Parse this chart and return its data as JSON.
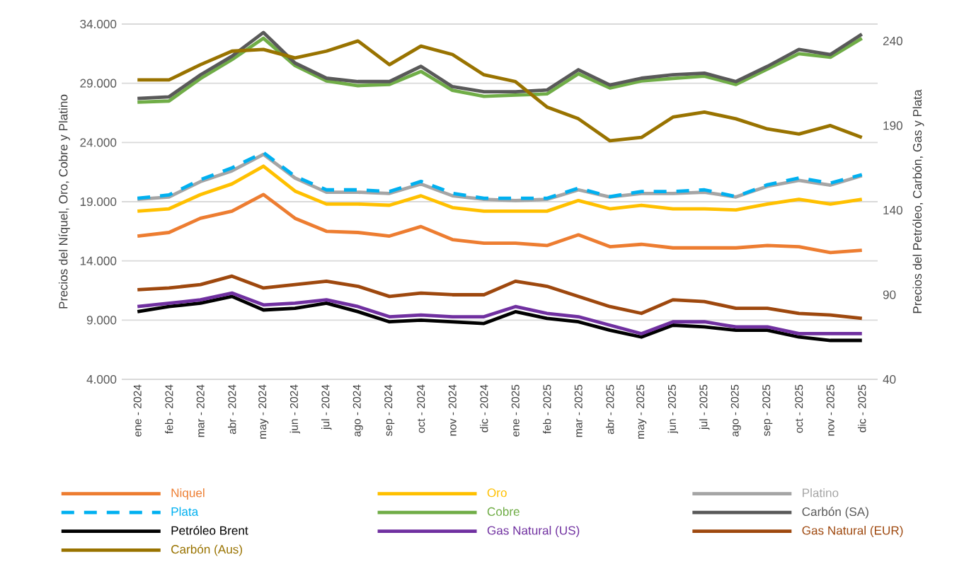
{
  "chart_data": {
    "type": "line",
    "categories": [
      "ene - 2024",
      "feb - 2024",
      "mar - 2024",
      "abr - 2024",
      "may - 2024",
      "jun - 2024",
      "jul - 2024",
      "ago - 2024",
      "sep - 2024",
      "oct - 2024",
      "nov - 2024",
      "dic - 2024",
      "ene - 2025",
      "feb - 2025",
      "mar - 2025",
      "abr - 2025",
      "may - 2025",
      "jun - 2025",
      "jul - 2025",
      "ago - 2025",
      "sep - 2025",
      "oct - 2025",
      "nov - 2025",
      "dic - 2025"
    ],
    "ylabel": "Precios del Níquel, Oro, Cobre y Platino",
    "y2label": "Precios del Petróleo, Carbón, Gas y Plata",
    "ylim": [
      4000,
      34000
    ],
    "yticks": [
      {
        "value": 4000,
        "label": "4.000"
      },
      {
        "value": 9000,
        "label": "9.000"
      },
      {
        "value": 14000,
        "label": "14.000"
      },
      {
        "value": 19000,
        "label": "19.000"
      },
      {
        "value": 24000,
        "label": "24.000"
      },
      {
        "value": 29000,
        "label": "29.000"
      },
      {
        "value": 34000,
        "label": "34.000"
      }
    ],
    "y2lim": [
      40,
      250
    ],
    "y2ticks": [
      40,
      90,
      140,
      190,
      240
    ],
    "grid": "y",
    "legend": "bottom",
    "marker": "none",
    "series": [
      {
        "name": "Niquel",
        "color": "#ed7d31",
        "axis": "y",
        "line_style": "solid",
        "values": [
          16100,
          16400,
          17600,
          18200,
          19600,
          17600,
          16500,
          16400,
          16100,
          16900,
          15800,
          15500,
          15500,
          15300,
          16200,
          15200,
          15400,
          15100,
          15100,
          15100,
          15300,
          15200,
          14700,
          14900
        ]
      },
      {
        "name": "Oro",
        "color": "#ffc000",
        "axis": "y",
        "line_style": "solid",
        "values": [
          18200,
          18400,
          19600,
          20500,
          22000,
          19900,
          18800,
          18800,
          18700,
          19500,
          18500,
          18200,
          18200,
          18200,
          19100,
          18400,
          18700,
          18400,
          18400,
          18300,
          18800,
          19200,
          18800,
          19200
        ]
      },
      {
        "name": "Platino",
        "color": "#a5a5a5",
        "axis": "y",
        "line_style": "solid",
        "values": [
          19200,
          19400,
          20700,
          21600,
          23000,
          21000,
          19800,
          19800,
          19700,
          20500,
          19500,
          19200,
          19100,
          19200,
          20000,
          19400,
          19700,
          19700,
          19800,
          19400,
          20300,
          20800,
          20400,
          21200
        ]
      },
      {
        "name": "Plata",
        "color": "#00b0f0",
        "axis": "y2",
        "line_style": "dashed",
        "values": [
          147,
          149,
          158,
          165,
          174,
          160,
          152,
          152,
          151,
          157,
          150,
          147,
          147,
          147,
          153,
          148,
          151,
          151,
          152,
          148,
          155,
          159,
          156,
          161
        ]
      },
      {
        "name": "Cobre",
        "color": "#70ad47",
        "axis": "y",
        "line_style": "solid",
        "values": [
          27400,
          27500,
          29400,
          31000,
          32800,
          30500,
          29200,
          28800,
          28900,
          30000,
          28400,
          27900,
          28000,
          28100,
          29800,
          28600,
          29200,
          29400,
          29600,
          28900,
          30200,
          31500,
          31200,
          32800
        ]
      },
      {
        "name": "Carbón (SA)",
        "color": "#595959",
        "axis": "y2",
        "line_style": "solid",
        "values": [
          206,
          207,
          220,
          231,
          245,
          227,
          218,
          216,
          216,
          225,
          213,
          210,
          210,
          211,
          223,
          214,
          218,
          220,
          221,
          216,
          225,
          235,
          232,
          244
        ]
      },
      {
        "name": "Petróleo Brent",
        "color": "#000000",
        "axis": "y2",
        "line_style": "solid",
        "values": [
          80,
          83,
          85,
          89,
          81,
          82,
          85,
          80,
          74,
          75,
          74,
          73,
          80,
          76,
          74,
          69,
          65,
          72,
          71,
          69,
          69,
          65,
          63,
          63
        ]
      },
      {
        "name": "Gas Natural (US)",
        "color": "#7030a0",
        "axis": "y2",
        "line_style": "solid",
        "values": [
          83,
          85,
          87,
          91,
          84,
          85,
          87,
          83,
          77,
          78,
          77,
          77,
          83,
          79,
          77,
          72,
          67,
          74,
          74,
          71,
          71,
          67,
          67,
          67
        ]
      },
      {
        "name": "Gas Natural (EUR)",
        "color": "#9e480e",
        "axis": "y2",
        "line_style": "solid",
        "values": [
          93,
          94,
          96,
          101,
          94,
          96,
          98,
          95,
          89,
          91,
          90,
          90,
          98,
          95,
          89,
          83,
          79,
          87,
          86,
          82,
          82,
          79,
          78,
          76
        ]
      },
      {
        "name": "Carbón (Aus)",
        "color": "#997300",
        "axis": "y2",
        "line_style": "solid",
        "values": [
          217,
          217,
          226,
          234,
          235,
          230,
          234,
          240,
          226,
          237,
          232,
          220,
          216,
          201,
          194,
          181,
          183,
          195,
          198,
          194,
          188,
          185,
          190,
          183
        ]
      }
    ]
  }
}
